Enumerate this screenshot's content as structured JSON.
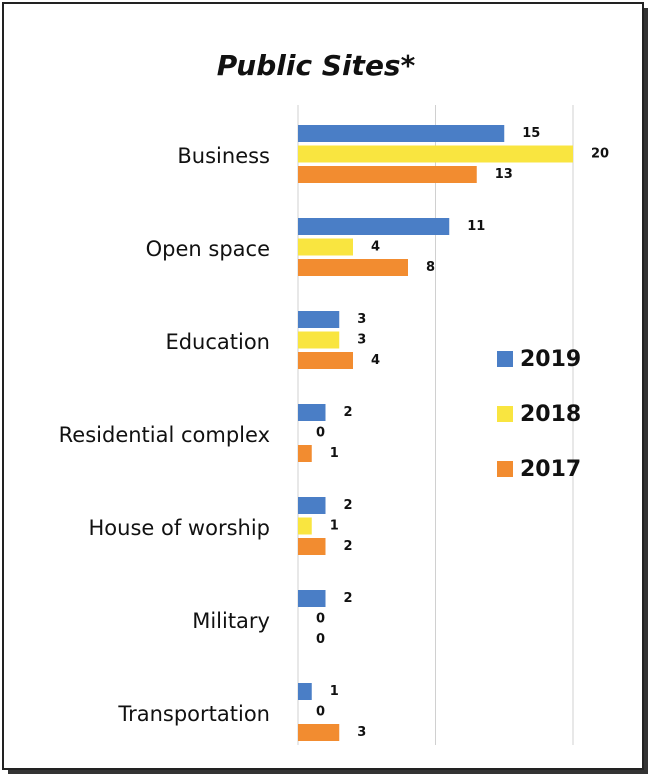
{
  "chart_data": {
    "type": "bar",
    "orientation": "horizontal",
    "title": "Public Sites*",
    "categories": [
      "Business",
      "Open space",
      "Education",
      "Residential complex",
      "House of worship",
      "Military",
      "Transportation"
    ],
    "series": [
      {
        "name": "2019",
        "color": "#4a7ec6",
        "values": [
          15,
          11,
          3,
          2,
          2,
          2,
          1
        ]
      },
      {
        "name": "2018",
        "color": "#f9e540",
        "values": [
          20,
          4,
          3,
          0,
          1,
          0,
          0
        ]
      },
      {
        "name": "2017",
        "color": "#f28c30",
        "values": [
          13,
          8,
          4,
          1,
          2,
          0,
          3
        ]
      }
    ],
    "xlim": [
      0,
      20
    ],
    "xticks": [
      0,
      10,
      20
    ],
    "grid": true,
    "legend": "right"
  }
}
